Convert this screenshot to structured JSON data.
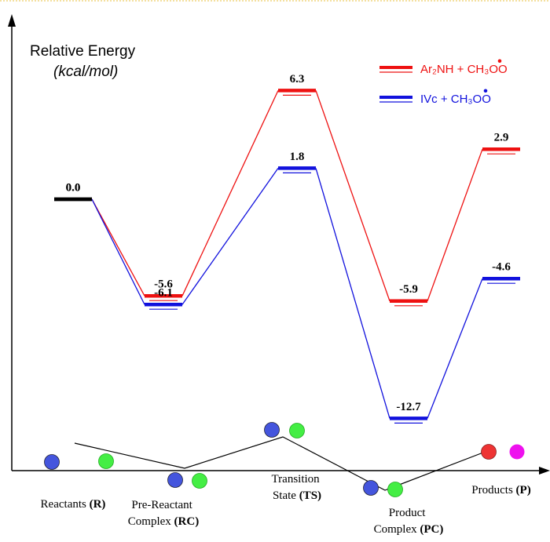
{
  "chart_data": {
    "type": "energy-levels",
    "y_label": "Relative Energy",
    "y_unit": "(kcal/mol)",
    "categories": [
      "Reactants (R)",
      "Pre-Reactant Complex (RC)",
      "Transition State (TS)",
      "Product Complex (PC)",
      "Products (P)"
    ],
    "series": [
      {
        "name": "Ar₂NH + CH₃OO",
        "radical": "•",
        "color": "#ee1111",
        "values": [
          0,
          -5.6,
          6.3,
          -5.9,
          2.9
        ],
        "value_labels": [
          "0.0",
          "-5.6",
          "6.3",
          "-5.9",
          "2.9"
        ]
      },
      {
        "name": "IVc + CH₃OO",
        "radical": "•",
        "color": "#1111dd",
        "values": [
          0,
          -6.1,
          1.8,
          -12.7,
          -4.6
        ],
        "value_labels": [
          "0.0",
          "-6.1",
          "1.8",
          "-12.7",
          "-4.6"
        ]
      }
    ],
    "start_color": "#000000",
    "ylim": [
      -13,
      7
    ],
    "legend": "top-right"
  }
}
